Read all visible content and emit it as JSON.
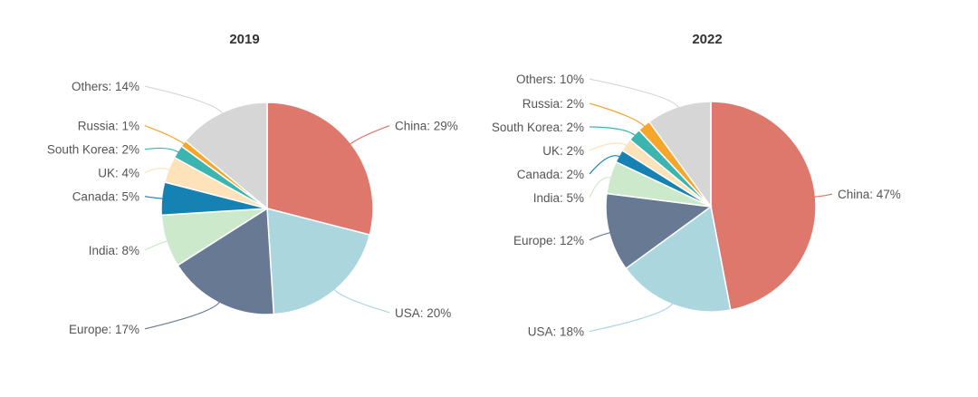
{
  "colors": {
    "China": "#de776c",
    "USA": "#acd6de",
    "Europe": "#677993",
    "India": "#cde9cc",
    "Canada": "#1582b3",
    "UK": "#fde2ba",
    "South Korea": "#3cb5b0",
    "Russia": "#f7a52b",
    "Others": "#d6d6d6"
  },
  "chart_data": [
    {
      "type": "pie",
      "title": "2019",
      "slices": [
        {
          "label": "China",
          "value": 29,
          "text": "China: 29%"
        },
        {
          "label": "USA",
          "value": 20,
          "text": "USA: 20%"
        },
        {
          "label": "Europe",
          "value": 17,
          "text": "Europe: 17%"
        },
        {
          "label": "India",
          "value": 8,
          "text": "India: 8%"
        },
        {
          "label": "Canada",
          "value": 5,
          "text": "Canada: 5%"
        },
        {
          "label": "UK",
          "value": 4,
          "text": "UK: 4%"
        },
        {
          "label": "South Korea",
          "value": 2,
          "text": "South Korea: 2%"
        },
        {
          "label": "Russia",
          "value": 1,
          "text": "Russia: 1%"
        },
        {
          "label": "Others",
          "value": 14,
          "text": "Others: 14%"
        }
      ]
    },
    {
      "type": "pie",
      "title": "2022",
      "slices": [
        {
          "label": "China",
          "value": 47,
          "text": "China: 47%"
        },
        {
          "label": "USA",
          "value": 18,
          "text": "USA: 18%"
        },
        {
          "label": "Europe",
          "value": 12,
          "text": "Europe: 12%"
        },
        {
          "label": "India",
          "value": 5,
          "text": "India: 5%"
        },
        {
          "label": "Canada",
          "value": 2,
          "text": "Canada: 2%"
        },
        {
          "label": "UK",
          "value": 2,
          "text": "UK: 2%"
        },
        {
          "label": "South Korea",
          "value": 2,
          "text": "South Korea: 2%"
        },
        {
          "label": "Russia",
          "value": 2,
          "text": "Russia: 2%"
        },
        {
          "label": "Others",
          "value": 10,
          "text": "Others: 10%"
        }
      ]
    }
  ]
}
